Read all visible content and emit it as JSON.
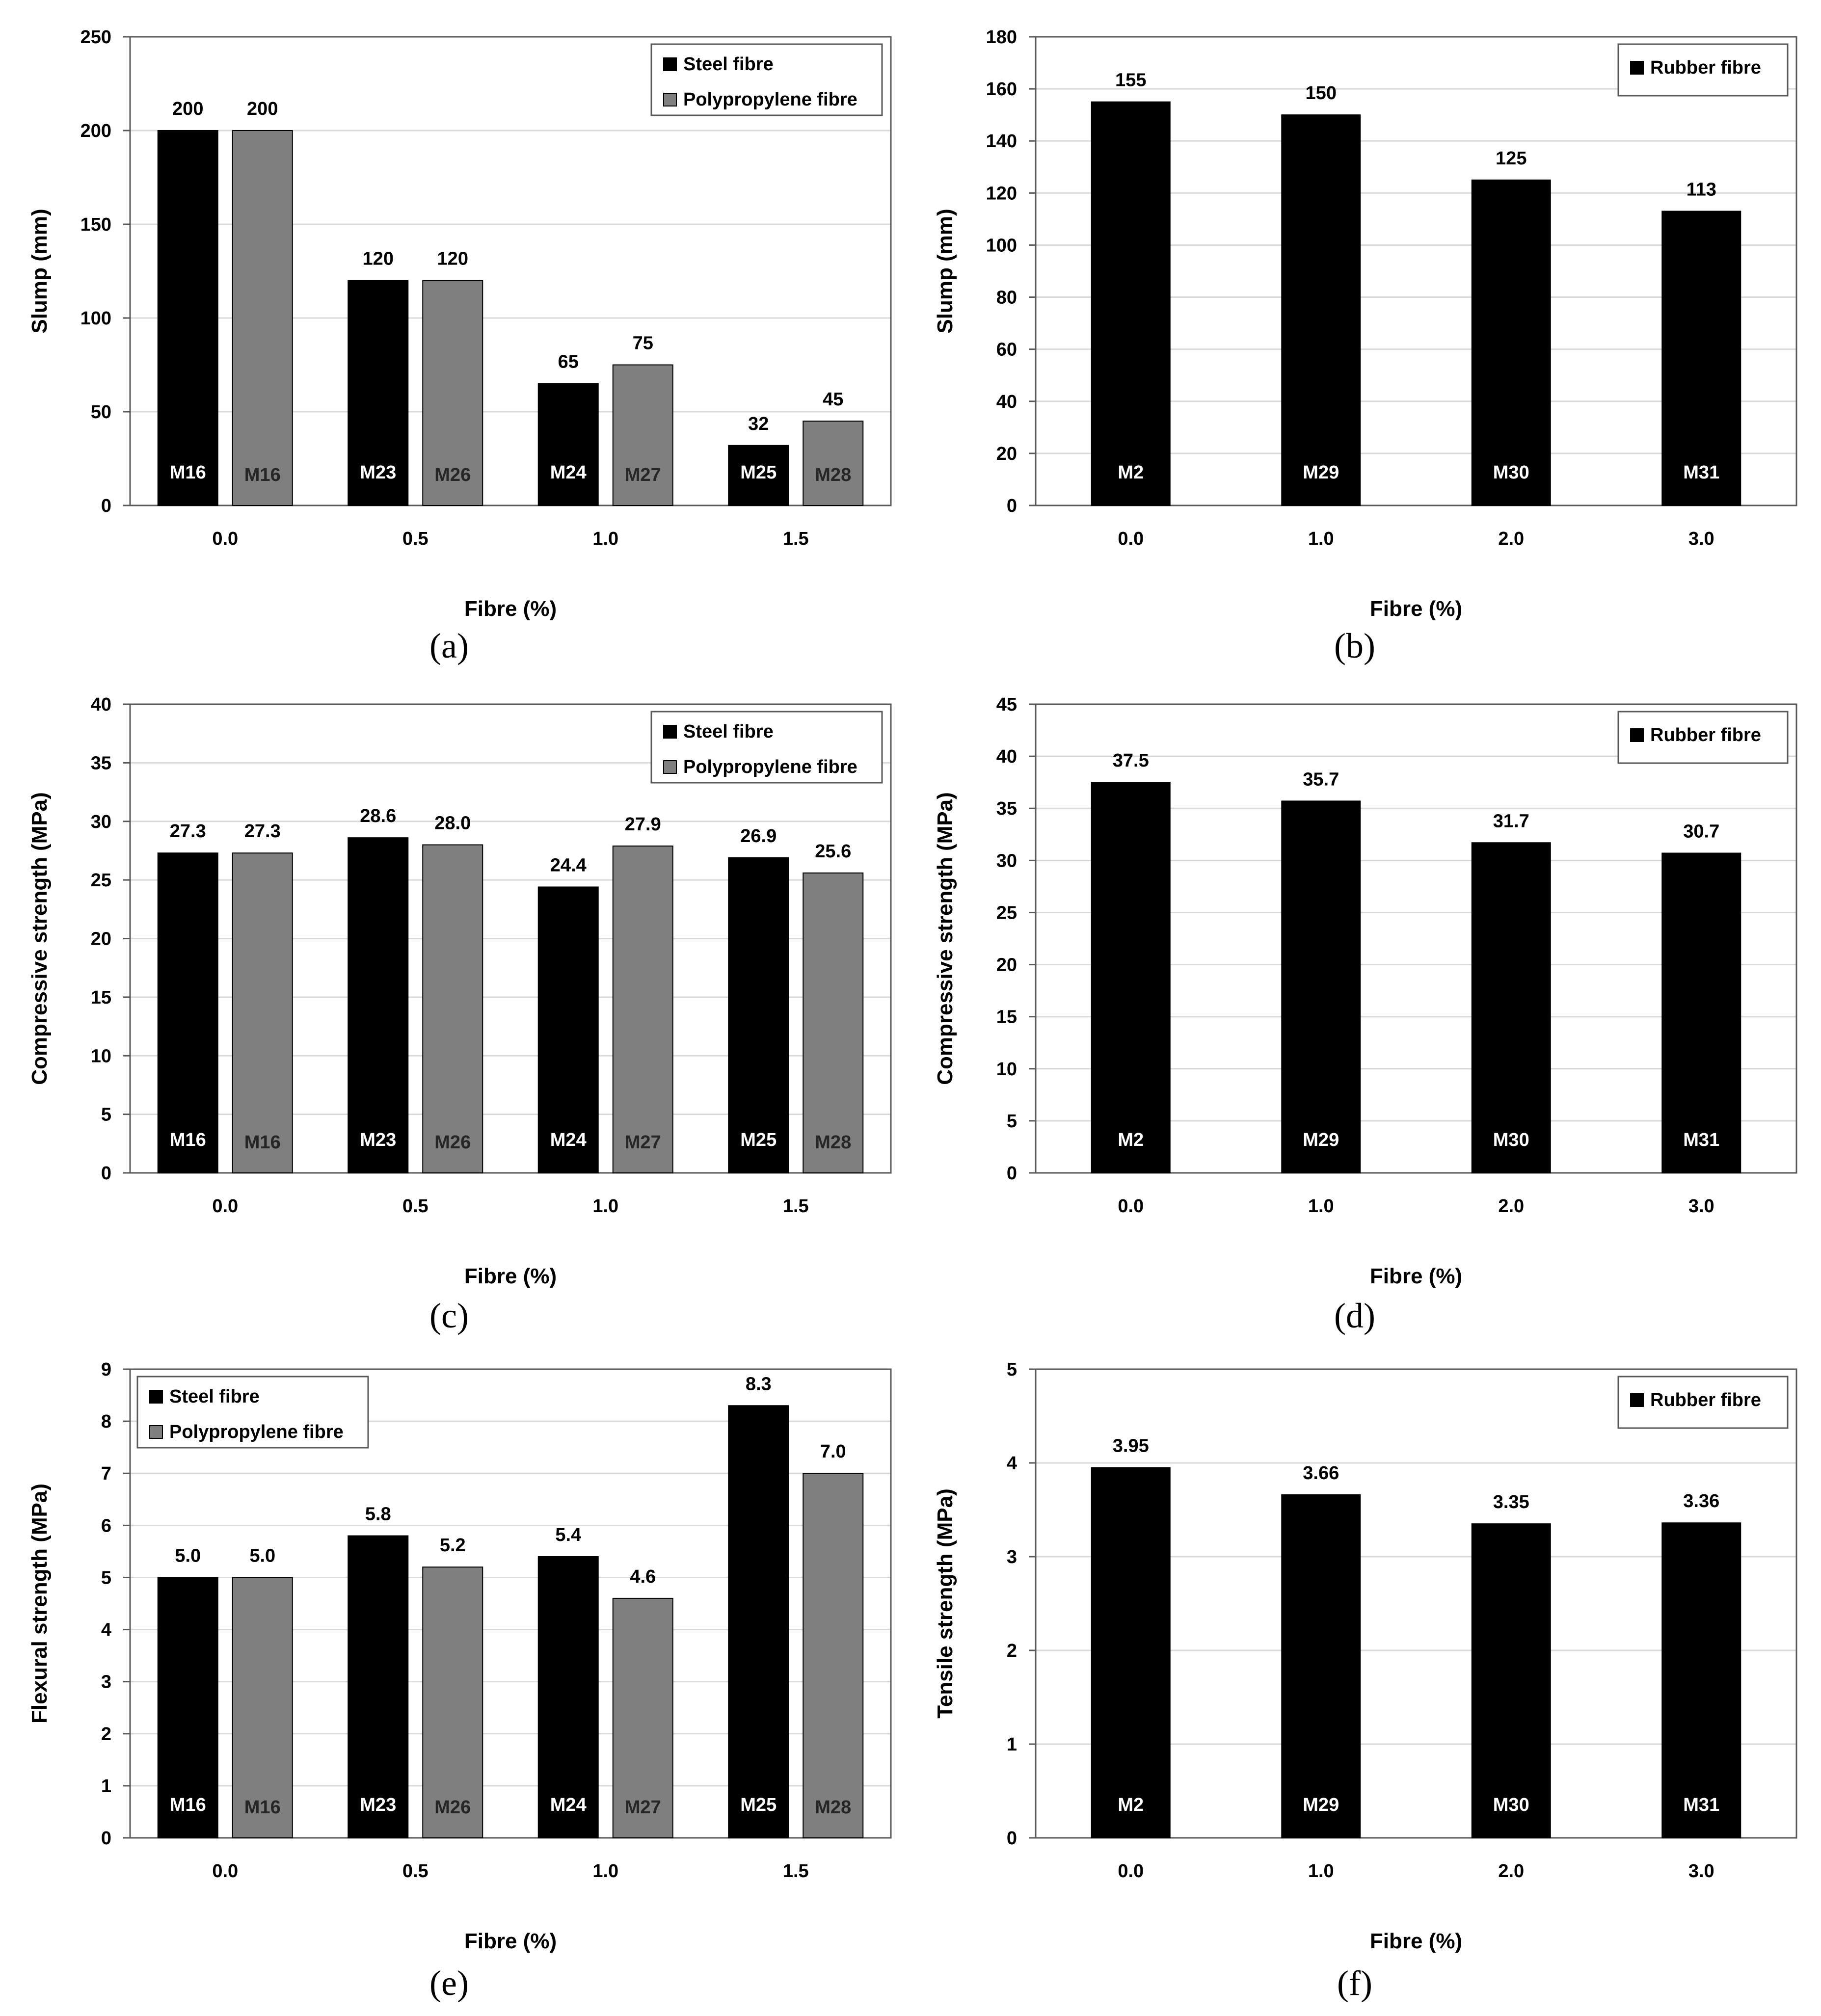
{
  "colors": {
    "steel": "#000000",
    "polypropylene": "#7f7f7f",
    "rubber": "#000000",
    "grid": "#d9d9d9",
    "axis": "#595959"
  },
  "chart_data": [
    {
      "id": "a",
      "type": "bar",
      "caption": "(a)",
      "xlabel": "Fibre (%)",
      "ylabel": "Slump (mm)",
      "ylim": [
        0,
        250
      ],
      "ytick_step": 50,
      "ytick_decimals": 0,
      "categories": [
        "0.0",
        "0.5",
        "1.0",
        "1.5"
      ],
      "legend": "top-right",
      "series": [
        {
          "name": "Steel fibre",
          "color_key": "steel",
          "values": [
            200,
            120,
            65,
            32
          ],
          "labels": [
            "200",
            "120",
            "65",
            "32"
          ],
          "mixes": [
            "M16",
            "M23",
            "M24",
            "M25"
          ]
        },
        {
          "name": "Polypropylene fibre",
          "color_key": "polypropylene",
          "values": [
            200,
            120,
            75,
            45
          ],
          "labels": [
            "200",
            "120",
            "75",
            "45"
          ],
          "mixes": [
            "M16",
            "M26",
            "M27",
            "M28"
          ]
        }
      ]
    },
    {
      "id": "b",
      "type": "bar",
      "caption": "(b)",
      "xlabel": "Fibre (%)",
      "ylabel": "Slump (mm)",
      "ylim": [
        0,
        180
      ],
      "ytick_step": 20,
      "ytick_decimals": 0,
      "categories": [
        "0.0",
        "1.0",
        "2.0",
        "3.0"
      ],
      "legend": "top-right",
      "series": [
        {
          "name": "Rubber fibre",
          "color_key": "rubber",
          "values": [
            155,
            150,
            125,
            113
          ],
          "labels": [
            "155",
            "150",
            "125",
            "113"
          ],
          "mixes": [
            "M2",
            "M29",
            "M30",
            "M31"
          ]
        }
      ]
    },
    {
      "id": "c",
      "type": "bar",
      "caption": "(c)",
      "xlabel": "Fibre (%)",
      "ylabel": "Compressive strength (MPa)",
      "ylim": [
        0,
        40
      ],
      "ytick_step": 5,
      "ytick_decimals": 0,
      "categories": [
        "0.0",
        "0.5",
        "1.0",
        "1.5"
      ],
      "legend": "top-right",
      "series": [
        {
          "name": "Steel fibre",
          "color_key": "steel",
          "values": [
            27.3,
            28.6,
            24.4,
            26.9
          ],
          "labels": [
            "27.3",
            "28.6",
            "24.4",
            "26.9"
          ],
          "mixes": [
            "M16",
            "M23",
            "M24",
            "M25"
          ]
        },
        {
          "name": "Polypropylene fibre",
          "color_key": "polypropylene",
          "values": [
            27.3,
            28.0,
            27.9,
            25.6
          ],
          "labels": [
            "27.3",
            "28.0",
            "27.9",
            "25.6"
          ],
          "mixes": [
            "M16",
            "M26",
            "M27",
            "M28"
          ]
        }
      ]
    },
    {
      "id": "d",
      "type": "bar",
      "caption": "(d)",
      "xlabel": "Fibre (%)",
      "ylabel": "Compressive strength (MPa)",
      "ylim": [
        0,
        45
      ],
      "ytick_step": 5,
      "ytick_decimals": 0,
      "categories": [
        "0.0",
        "1.0",
        "2.0",
        "3.0"
      ],
      "legend": "top-right",
      "series": [
        {
          "name": "Rubber fibre",
          "color_key": "rubber",
          "values": [
            37.5,
            35.7,
            31.7,
            30.7
          ],
          "labels": [
            "37.5",
            "35.7",
            "31.7",
            "30.7"
          ],
          "mixes": [
            "M2",
            "M29",
            "M30",
            "M31"
          ]
        }
      ]
    },
    {
      "id": "e",
      "type": "bar",
      "caption": "(e)",
      "xlabel": "Fibre (%)",
      "ylabel": "Flexural strength (MPa)",
      "ylim": [
        0,
        9
      ],
      "ytick_step": 1,
      "ytick_decimals": 0,
      "categories": [
        "0.0",
        "0.5",
        "1.0",
        "1.5"
      ],
      "legend": "top-left",
      "series": [
        {
          "name": "Steel fibre",
          "color_key": "steel",
          "values": [
            5.0,
            5.8,
            5.4,
            8.3
          ],
          "labels": [
            "5.0",
            "5.8",
            "5.4",
            "8.3"
          ],
          "mixes": [
            "M16",
            "M23",
            "M24",
            "M25"
          ]
        },
        {
          "name": "Polypropylene fibre",
          "color_key": "polypropylene",
          "values": [
            5.0,
            5.2,
            4.6,
            7.0
          ],
          "labels": [
            "5.0",
            "5.2",
            "4.6",
            "7.0"
          ],
          "mixes": [
            "M16",
            "M26",
            "M27",
            "M28"
          ]
        }
      ]
    },
    {
      "id": "f",
      "type": "bar",
      "caption": "(f)",
      "xlabel": "Fibre (%)",
      "ylabel": "Tensile strength (MPa)",
      "ylim": [
        0,
        5
      ],
      "ytick_step": 1,
      "ytick_decimals": 0,
      "categories": [
        "0.0",
        "1.0",
        "2.0",
        "3.0"
      ],
      "legend": "top-right",
      "series": [
        {
          "name": "Rubber fibre",
          "color_key": "rubber",
          "values": [
            3.95,
            3.66,
            3.35,
            3.36
          ],
          "labels": [
            "3.95",
            "3.66",
            "3.35",
            "3.36"
          ],
          "mixes": [
            "M2",
            "M29",
            "M30",
            "M31"
          ]
        }
      ]
    }
  ]
}
